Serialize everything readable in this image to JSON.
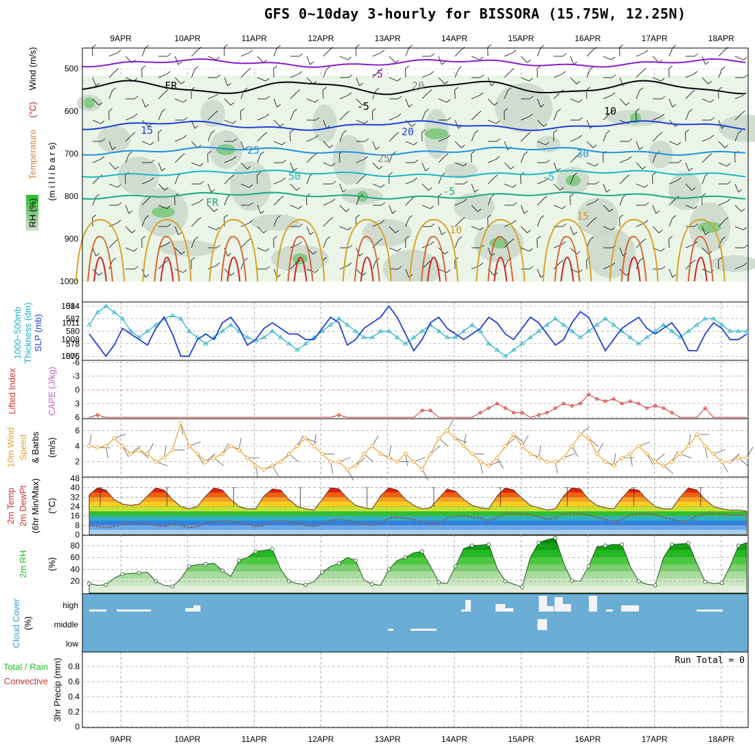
{
  "title": "GFS 0~10day 3-hourly for BISSORA (15.75W, 12.25N)",
  "dates": [
    "9APR",
    "10APR",
    "11APR",
    "12APR",
    "13APR",
    "14APR",
    "15APR",
    "16APR",
    "17APR",
    "18APR"
  ],
  "panels": {
    "upper_air": {
      "labels": [
        "RH (%)",
        "Temperature",
        "(°C)",
        "Wind (m/s)",
        "(m i l l i b a r s)"
      ],
      "yticks": [
        "500",
        "600",
        "700",
        "800",
        "900",
        "1000"
      ],
      "contour_labels": [
        "-5",
        "FR",
        "-5",
        "10",
        "15",
        "20",
        "25",
        "30",
        "50"
      ]
    },
    "thickness_slp": {
      "labels": [
        "1000~500mb",
        "Thickness (dm)",
        "SLP (mb)"
      ],
      "yticks_left": [
        "584",
        "582",
        "580",
        "578",
        "576"
      ],
      "yticks_right": [
        "1014",
        "1011",
        "1008",
        "1005"
      ]
    },
    "lifted_cape": {
      "labels": [
        "Lifted Index",
        "CAPE (J/kg)"
      ],
      "yticks": [
        "-6",
        "-3",
        "0",
        "3",
        "6"
      ]
    },
    "wind10m": {
      "labels": [
        "10m Wind",
        "Speed",
        "& Barbs",
        "(m/s)"
      ],
      "yticks": [
        "6",
        "4",
        "2"
      ]
    },
    "temp2m": {
      "labels": [
        "2m Temp",
        "2m DewPt",
        "(6hr Min/Max)",
        "(°C)"
      ],
      "yticks": [
        "48",
        "40",
        "32",
        "24",
        "16",
        "8",
        "0"
      ]
    },
    "rh2m": {
      "labels": [
        "2m RH",
        "(%)"
      ],
      "yticks": [
        "80",
        "60",
        "40",
        "20"
      ]
    },
    "cloud": {
      "labels": [
        "Cloud Cover",
        "(%)"
      ],
      "levels": [
        "high",
        "middle",
        "low"
      ]
    },
    "precip": {
      "labels": [
        "3hr Precip (mm)",
        "Total / Rain",
        "Convective"
      ],
      "yticks": [
        "0.8",
        "0.6",
        "0.4",
        "0.2",
        "0"
      ],
      "run_total": "Run Total = 0"
    }
  },
  "colors": {
    "accent_purple": "#8a1cc8",
    "slp_blue": "#1f3fcf",
    "thickness_cyan": "#22b0c0",
    "li_red": "#d03030",
    "wind_orange": "#e8a030",
    "rh_green": "#22c022",
    "cloud_blue": "#6aaed6"
  },
  "chart_data": [
    {
      "type": "line",
      "title": "1000~500mb Thickness / SLP",
      "x_unit": "3-hourly step from 8 APR 12Z",
      "series": [
        {
          "name": "Thickness (dm)",
          "values": [
            581,
            583,
            584,
            583,
            582,
            580,
            579,
            580,
            581,
            582,
            582.5,
            582,
            580,
            579,
            578,
            579,
            580,
            581,
            580,
            579,
            578.5,
            579,
            580,
            579,
            578,
            577,
            578,
            579,
            580,
            581,
            582,
            581,
            580,
            579,
            579,
            580,
            580,
            579,
            578,
            579,
            580,
            581,
            580,
            579,
            579,
            580,
            581,
            580,
            578,
            577,
            576,
            577,
            578,
            579,
            580,
            581,
            582,
            581,
            580,
            579,
            580,
            581,
            582,
            581,
            580,
            579,
            578,
            579,
            580,
            581,
            580,
            579,
            580,
            581,
            582,
            582,
            581,
            580,
            580,
            580
          ]
        },
        {
          "name": "SLP (mb)",
          "values": [
            1009,
            1007,
            1005,
            1007,
            1010,
            1009,
            1008,
            1007,
            1010,
            1012,
            1009,
            1005,
            1005,
            1008,
            1009,
            1008,
            1011,
            1012,
            1010,
            1007,
            1008,
            1010,
            1011,
            1010,
            1009,
            1009,
            1008,
            1008,
            1010,
            1012,
            1011,
            1007,
            1008,
            1010,
            1011,
            1012,
            1014,
            1012,
            1009,
            1006,
            1008,
            1011,
            1012,
            1010,
            1009,
            1008,
            1009,
            1010,
            1012,
            1011,
            1009,
            1008,
            1010,
            1012,
            1011,
            1009,
            1007,
            1008,
            1011,
            1013,
            1012,
            1009,
            1006,
            1008,
            1010,
            1011,
            1012,
            1010,
            1009,
            1010,
            1011,
            1009,
            1006,
            1006,
            1009,
            1011,
            1010,
            1008,
            1008,
            1009
          ]
        }
      ]
    },
    {
      "type": "line",
      "title": "Lifted Index",
      "series": [
        {
          "name": "Lifted Index",
          "values": [
            6,
            5.5,
            6,
            6,
            6,
            6,
            6,
            6,
            6,
            6,
            6,
            6,
            6,
            6,
            6,
            6,
            6,
            6,
            6,
            6,
            6,
            6,
            6,
            6,
            6,
            6,
            6,
            6,
            6,
            6,
            5.5,
            6,
            6,
            6,
            6,
            6,
            6,
            6,
            6,
            6,
            4.5,
            4.5,
            6,
            6,
            6,
            6,
            6,
            5,
            4,
            3,
            4,
            5,
            5,
            6,
            5.5,
            5,
            4,
            3,
            3.5,
            3,
            1,
            2,
            2.5,
            2,
            3,
            2.5,
            3,
            4,
            3.5,
            4,
            5,
            6,
            6,
            6,
            4,
            6,
            6,
            6,
            6,
            6
          ]
        }
      ]
    },
    {
      "type": "line",
      "title": "10m Wind Speed",
      "series": [
        {
          "name": "Speed (m/s)",
          "values": [
            4,
            3.8,
            4,
            5,
            4,
            3,
            3.5,
            3,
            2,
            2.5,
            3.5,
            7,
            4,
            3,
            2,
            2.5,
            3,
            4,
            3.5,
            2.5,
            1.5,
            1,
            1.5,
            2,
            3,
            4,
            5,
            4,
            3,
            2,
            2,
            1,
            1.5,
            3,
            4,
            3,
            2.5,
            2,
            3,
            2,
            1,
            3,
            5,
            6,
            5,
            4,
            3,
            2,
            1.5,
            2.5,
            4,
            5.5,
            4,
            3,
            2.5,
            2,
            2,
            2.5,
            4,
            5.5,
            5,
            3,
            2,
            1.5,
            2.5,
            3,
            4,
            3,
            2,
            1.5,
            2,
            3,
            4,
            5.5,
            4,
            3,
            2,
            2,
            2.5,
            2.5
          ]
        }
      ]
    },
    {
      "type": "area",
      "title": "2m Temp / 2m DewPt",
      "series": [
        {
          "name": "2m Temp (°C)",
          "values": [
            34,
            40,
            38,
            30,
            26,
            25,
            26,
            33,
            40,
            38,
            30,
            24,
            22,
            24,
            33,
            40,
            38,
            30,
            24,
            22,
            22,
            33,
            39,
            38,
            30,
            24,
            22,
            21,
            30,
            40,
            39,
            31,
            25,
            23,
            22,
            33,
            40,
            38,
            30,
            25,
            22,
            23,
            31,
            39,
            37,
            30,
            25,
            23,
            22,
            33,
            40,
            38,
            31,
            25,
            23,
            21,
            22,
            33,
            40,
            39,
            30,
            25,
            23,
            22,
            31,
            39,
            38,
            30,
            24,
            22,
            22,
            32,
            40,
            38,
            30,
            24,
            22,
            21,
            21,
            20
          ]
        },
        {
          "name": "2m DewPt (°C)",
          "values": [
            8,
            7,
            6,
            7,
            9,
            10,
            10,
            9,
            8,
            7,
            9,
            8,
            6,
            7,
            10,
            11,
            12,
            11,
            10,
            9,
            7,
            8,
            11,
            12,
            11,
            10,
            8,
            7,
            9,
            12,
            13,
            12,
            11,
            9,
            8,
            10,
            14,
            15,
            14,
            13,
            11,
            9,
            10,
            14,
            16,
            16,
            15,
            14,
            12,
            14,
            18,
            18,
            18,
            17,
            15,
            13,
            14,
            18,
            18,
            18,
            17,
            15,
            13,
            11,
            13,
            17,
            18,
            18,
            17,
            15,
            13,
            11,
            12,
            16,
            18,
            18,
            18,
            17,
            17,
            17
          ]
        }
      ]
    },
    {
      "type": "area",
      "title": "2m RH",
      "series": [
        {
          "name": "2m RH (%)",
          "values": [
            16,
            13,
            14,
            25,
            32,
            33,
            34,
            35,
            20,
            13,
            11,
            24,
            45,
            48,
            49,
            50,
            38,
            28,
            55,
            60,
            70,
            72,
            74,
            40,
            20,
            16,
            14,
            19,
            35,
            45,
            50,
            60,
            55,
            22,
            15,
            13,
            40,
            55,
            60,
            68,
            70,
            45,
            18,
            16,
            45,
            75,
            80,
            81,
            82,
            42,
            20,
            15,
            10,
            60,
            85,
            90,
            93,
            50,
            21,
            20,
            45,
            78,
            80,
            82,
            82,
            45,
            20,
            15,
            13,
            60,
            82,
            83,
            84,
            50,
            19,
            16,
            17,
            45,
            80,
            85
          ]
        }
      ]
    },
    {
      "type": "bar",
      "title": "Cloud Cover",
      "categories": [
        "high",
        "middle",
        "low"
      ]
    },
    {
      "type": "bar",
      "title": "3hr Precip",
      "ylabel": "3hr Precip (mm)",
      "ylim": [
        0,
        1
      ],
      "values": [
        0,
        0,
        0,
        0,
        0,
        0,
        0,
        0,
        0,
        0
      ]
    }
  ]
}
